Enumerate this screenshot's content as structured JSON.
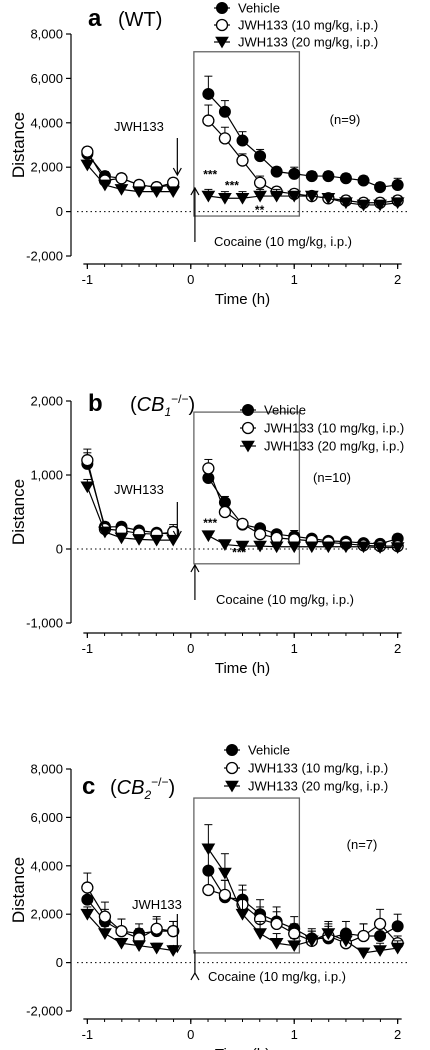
{
  "chart_data": [
    {
      "type": "line",
      "panel_letter": "a",
      "genotype": "(WT)",
      "n_label": "(n=9)",
      "xlabel": "Time (h)",
      "ylabel": "Distance",
      "xlim": [
        -1.1,
        2.1
      ],
      "ylim": [
        -2000,
        8000
      ],
      "xticks": [
        -1,
        0,
        1,
        2
      ],
      "xtick_labels": [
        "-1",
        "0",
        "1",
        "2"
      ],
      "yticks": [
        -2000,
        0,
        2000,
        4000,
        6000,
        8000
      ],
      "ytick_labels": [
        "-2,000",
        "0",
        "2,000",
        "4,000",
        "6,000",
        "8,000"
      ],
      "legend_position": "top-right",
      "annotations": {
        "drug": "JWH133",
        "cocaine": "Cocaine (10 mg/kg, i.p.)"
      },
      "significance": [
        {
          "text": "***",
          "x": 0.12,
          "y": 1500
        },
        {
          "text": "***",
          "x": 0.33,
          "y": 1000
        },
        {
          "text": "**",
          "x": 0.62,
          "y": -100
        }
      ],
      "pre_x": [
        -1.0,
        -0.83,
        -0.67,
        -0.5,
        -0.33,
        -0.17
      ],
      "post_x": [
        0.17,
        0.33,
        0.5,
        0.67,
        0.83,
        1.0,
        1.17,
        1.33,
        1.5,
        1.67,
        1.83,
        2.0
      ],
      "series": [
        {
          "name": "Vehicle",
          "marker": "filled-circle",
          "pre": [
            2600,
            1600,
            1500,
            1200,
            1100,
            1200
          ],
          "pre_err": [
            200,
            200,
            200,
            200,
            200,
            200
          ],
          "post": [
            5300,
            4500,
            3200,
            2500,
            1800,
            1700,
            1600,
            1600,
            1500,
            1400,
            1100,
            1200
          ],
          "post_err": [
            800,
            500,
            400,
            300,
            200,
            300,
            200,
            200,
            200,
            200,
            200,
            300
          ]
        },
        {
          "name": "JWH133 (10 mg/kg, i.p.)",
          "marker": "open-circle",
          "pre": [
            2700,
            1400,
            1500,
            1200,
            1100,
            1300
          ],
          "pre_err": [
            200,
            200,
            200,
            200,
            200,
            200
          ],
          "post": [
            4100,
            3300,
            2300,
            1300,
            900,
            800,
            700,
            600,
            500,
            400,
            400,
            500
          ],
          "post_err": [
            700,
            500,
            300,
            300,
            200,
            200,
            200,
            200,
            200,
            200,
            200,
            200
          ]
        },
        {
          "name": "JWH133 (20 mg/kg, i.p.)",
          "marker": "filled-triangle-down",
          "pre": [
            2100,
            1200,
            1000,
            900,
            900,
            900
          ],
          "pre_err": [
            200,
            200,
            200,
            200,
            200,
            200
          ],
          "post": [
            700,
            600,
            600,
            700,
            700,
            700,
            700,
            600,
            400,
            300,
            300,
            400
          ],
          "post_err": [
            300,
            300,
            300,
            300,
            300,
            200,
            200,
            200,
            200,
            200,
            200,
            200
          ]
        }
      ]
    },
    {
      "type": "line",
      "panel_letter": "b",
      "genotype": "(CB1−/−)",
      "n_label": "(n=10)",
      "xlabel": "Time (h)",
      "ylabel": "Distance",
      "xlim": [
        -1.1,
        2.1
      ],
      "ylim": [
        -1000,
        2000
      ],
      "xticks": [
        -1,
        0,
        1,
        2
      ],
      "xtick_labels": [
        "-1",
        "0",
        "1",
        "2"
      ],
      "yticks": [
        -1000,
        0,
        1000,
        2000
      ],
      "ytick_labels": [
        "-1,000",
        "0",
        "1,000",
        "2,000"
      ],
      "legend_position": "top-right",
      "annotations": {
        "drug": "JWH133",
        "cocaine": "Cocaine (10 mg/kg, i.p.)"
      },
      "significance": [
        {
          "text": "***",
          "x": 0.12,
          "y": 300
        },
        {
          "text": "***",
          "x": 0.4,
          "y": -100
        }
      ],
      "pre_x": [
        -1.0,
        -0.83,
        -0.67,
        -0.5,
        -0.33,
        -0.17
      ],
      "post_x": [
        0.17,
        0.33,
        0.5,
        0.67,
        0.83,
        1.0,
        1.17,
        1.33,
        1.5,
        1.67,
        1.83,
        2.0
      ],
      "series": [
        {
          "name": "Vehicle",
          "marker": "filled-circle",
          "pre": [
            1150,
            300,
            300,
            250,
            220,
            200
          ],
          "pre_err": [
            150,
            60,
            60,
            50,
            50,
            100
          ],
          "post": [
            960,
            630,
            330,
            280,
            200,
            170,
            140,
            110,
            100,
            80,
            70,
            140
          ],
          "post_err": [
            120,
            80,
            60,
            50,
            50,
            80,
            50,
            40,
            40,
            40,
            40,
            60
          ]
        },
        {
          "name": "JWH133 (10 mg/kg, i.p.)",
          "marker": "open-circle",
          "pre": [
            1200,
            270,
            250,
            210,
            200,
            230
          ],
          "pre_err": [
            150,
            60,
            60,
            50,
            50,
            100
          ],
          "post": [
            1090,
            500,
            340,
            200,
            150,
            130,
            110,
            90,
            70,
            50,
            40,
            40
          ],
          "post_err": [
            120,
            80,
            60,
            50,
            50,
            50,
            40,
            40,
            40,
            40,
            40,
            40
          ]
        },
        {
          "name": "JWH133 (20 mg/kg, i.p.)",
          "marker": "filled-triangle-down",
          "pre": [
            840,
            230,
            150,
            130,
            120,
            120
          ],
          "pre_err": [
            100,
            50,
            50,
            40,
            40,
            40
          ],
          "post": [
            180,
            60,
            40,
            40,
            30,
            30,
            30,
            30,
            30,
            30,
            20,
            20
          ],
          "post_err": [
            40,
            30,
            30,
            30,
            30,
            30,
            30,
            30,
            30,
            30,
            30,
            30
          ]
        }
      ]
    },
    {
      "type": "line",
      "panel_letter": "c",
      "genotype": "(CB2−/−)",
      "n_label": "(n=7)",
      "xlabel": "Time (h)",
      "ylabel": "Distance",
      "xlim": [
        -1.1,
        2.1
      ],
      "ylim": [
        -2000,
        8000
      ],
      "xticks": [
        -1,
        0,
        1,
        2
      ],
      "xtick_labels": [
        "-1",
        "0",
        "1",
        "2"
      ],
      "yticks": [
        -2000,
        0,
        2000,
        4000,
        6000,
        8000
      ],
      "ytick_labels": [
        "-2,000",
        "0",
        "2,000",
        "4,000",
        "6,000",
        "8,000"
      ],
      "legend_position": "top-right",
      "annotations": {
        "drug": "JWH133",
        "cocaine": "Cocaine (10 mg/kg, i.p.)"
      },
      "significance": [],
      "pre_x": [
        -1.0,
        -0.83,
        -0.67,
        -0.5,
        -0.33,
        -0.17
      ],
      "post_x": [
        0.17,
        0.33,
        0.5,
        0.67,
        0.83,
        1.0,
        1.17,
        1.33,
        1.5,
        1.67,
        1.83,
        2.0
      ],
      "series": [
        {
          "name": "Vehicle",
          "marker": "filled-circle",
          "pre": [
            2600,
            1700,
            1300,
            1200,
            1300,
            1300
          ],
          "pre_err": [
            500,
            500,
            500,
            400,
            500,
            400
          ],
          "post": [
            3800,
            2700,
            2600,
            2000,
            1700,
            1400,
            1000,
            1000,
            1200,
            1100,
            1100,
            1500
          ],
          "post_err": [
            900,
            700,
            600,
            600,
            600,
            500,
            400,
            500,
            500,
            500,
            500,
            500
          ]
        },
        {
          "name": "JWH133 (10 mg/kg, i.p.)",
          "marker": "open-circle",
          "pre": [
            3100,
            1900,
            1300,
            1000,
            1400,
            1300
          ],
          "pre_err": [
            600,
            600,
            500,
            400,
            500,
            400
          ],
          "post": [
            3000,
            2800,
            2400,
            1800,
            1600,
            1200,
            900,
            1100,
            800,
            1100,
            1600,
            800
          ],
          "post_err": [
            700,
            600,
            600,
            500,
            500,
            400,
            400,
            500,
            400,
            500,
            600,
            300
          ]
        },
        {
          "name": "JWH133 (20 mg/kg, i.p.)",
          "marker": "filled-triangle-down",
          "pre": [
            2000,
            1200,
            800,
            700,
            600,
            500
          ],
          "pre_err": [
            300,
            300,
            200,
            200,
            200,
            200
          ],
          "post": [
            4700,
            3700,
            2000,
            1200,
            800,
            700,
            900,
            1200,
            900,
            400,
            500,
            600
          ],
          "post_err": [
            1000,
            800,
            600,
            500,
            400,
            300,
            400,
            500,
            400,
            200,
            300,
            300
          ]
        }
      ]
    }
  ]
}
